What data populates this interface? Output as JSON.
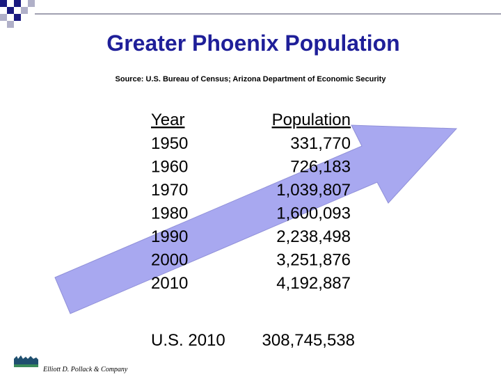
{
  "header": {
    "title": "Greater Phoenix Population",
    "source": "Source: U.S. Bureau of Census; Arizona Department of Economic Security"
  },
  "table": {
    "columns": [
      "Year",
      "Population"
    ],
    "rows": [
      [
        "1950",
        "331,770"
      ],
      [
        "1960",
        "726,183"
      ],
      [
        "1970",
        "1,039,807"
      ],
      [
        "1980",
        "1,600,093"
      ],
      [
        "1990",
        "2,238,498"
      ],
      [
        "2000",
        "3,251,876"
      ],
      [
        "2010",
        "4,192,887"
      ]
    ],
    "footer": [
      "U.S. 2010",
      "308,745,538"
    ]
  },
  "logo": {
    "text": "Elliott D. Pollack & Company"
  }
}
